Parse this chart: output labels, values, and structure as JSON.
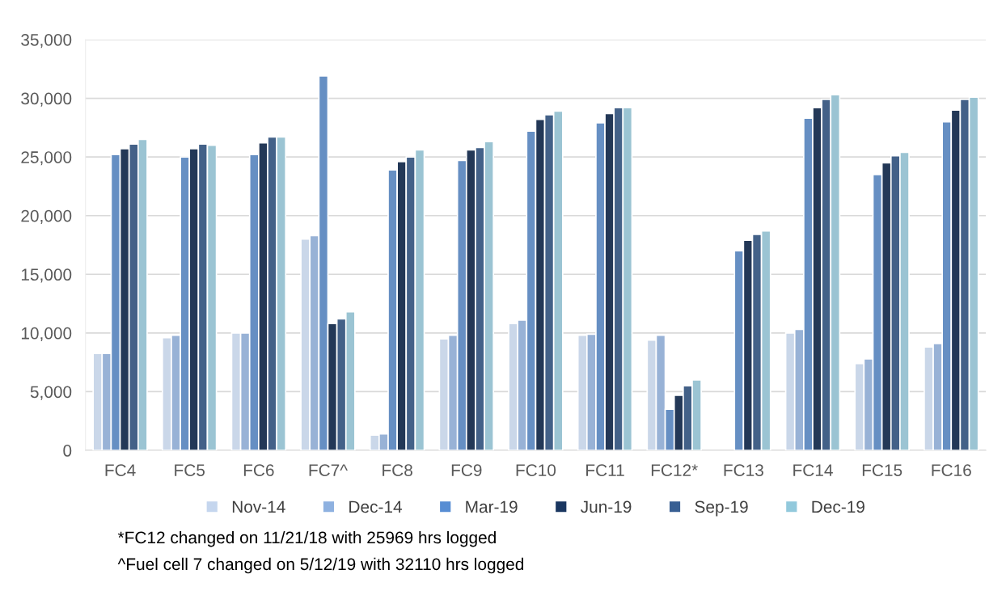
{
  "chart_data": {
    "type": "bar",
    "categories": [
      "FC4",
      "FC5",
      "FC6",
      "FC7^",
      "FC8",
      "FC9",
      "FC10",
      "FC11",
      "FC12*",
      "FC13",
      "FC14",
      "FC15",
      "FC16"
    ],
    "series": [
      {
        "name": "Nov-14",
        "color": "#c5d6ee",
        "values": [
          8250,
          9600,
          10000,
          18000,
          1300,
          9500,
          10800,
          9800,
          9400,
          null,
          10000,
          7400,
          8800
        ]
      },
      {
        "name": "Dec-14",
        "color": "#8eb1e0",
        "values": [
          8250,
          9800,
          10000,
          18300,
          1400,
          9800,
          11100,
          9900,
          9800,
          null,
          10300,
          7800,
          9100
        ]
      },
      {
        "name": "Mar-19",
        "color": "#578dd3",
        "values": [
          25200,
          25000,
          25200,
          31900,
          23900,
          24700,
          27200,
          27900,
          3500,
          17000,
          28300,
          23500,
          28000
        ]
      },
      {
        "name": "Jun-19",
        "color": "#1a3660",
        "values": [
          25700,
          25700,
          26200,
          10800,
          24600,
          25600,
          28200,
          28700,
          4700,
          17900,
          29200,
          24500,
          29000
        ]
      },
      {
        "name": "Sep-19",
        "color": "#385f93",
        "values": [
          26100,
          26100,
          26700,
          11200,
          25000,
          25800,
          28600,
          29200,
          5500,
          18400,
          29900,
          25100,
          29900
        ]
      },
      {
        "name": "Dec-19",
        "color": "#92c9dc",
        "values": [
          26500,
          26000,
          26700,
          11800,
          25600,
          26300,
          28900,
          29200,
          6000,
          18700,
          30300,
          25400,
          30100
        ]
      }
    ],
    "ylim": [
      0,
      35000
    ],
    "yticks": [
      {
        "value": 0,
        "label": "0"
      },
      {
        "value": 5000,
        "label": "5,000"
      },
      {
        "value": 10000,
        "label": "10,000"
      },
      {
        "value": 15000,
        "label": "15,000"
      },
      {
        "value": 20000,
        "label": "20,000"
      },
      {
        "value": 25000,
        "label": "25,000"
      },
      {
        "value": 30000,
        "label": "30,000"
      },
      {
        "value": 35000,
        "label": "35,000"
      }
    ],
    "grid": "y",
    "legend": "bottom",
    "annotations": [
      "*FC12 changed on 11/21/18 with 25969 hrs logged",
      "^Fuel cell 7 changed on 5/12/19 with 32110 hrs logged"
    ]
  }
}
